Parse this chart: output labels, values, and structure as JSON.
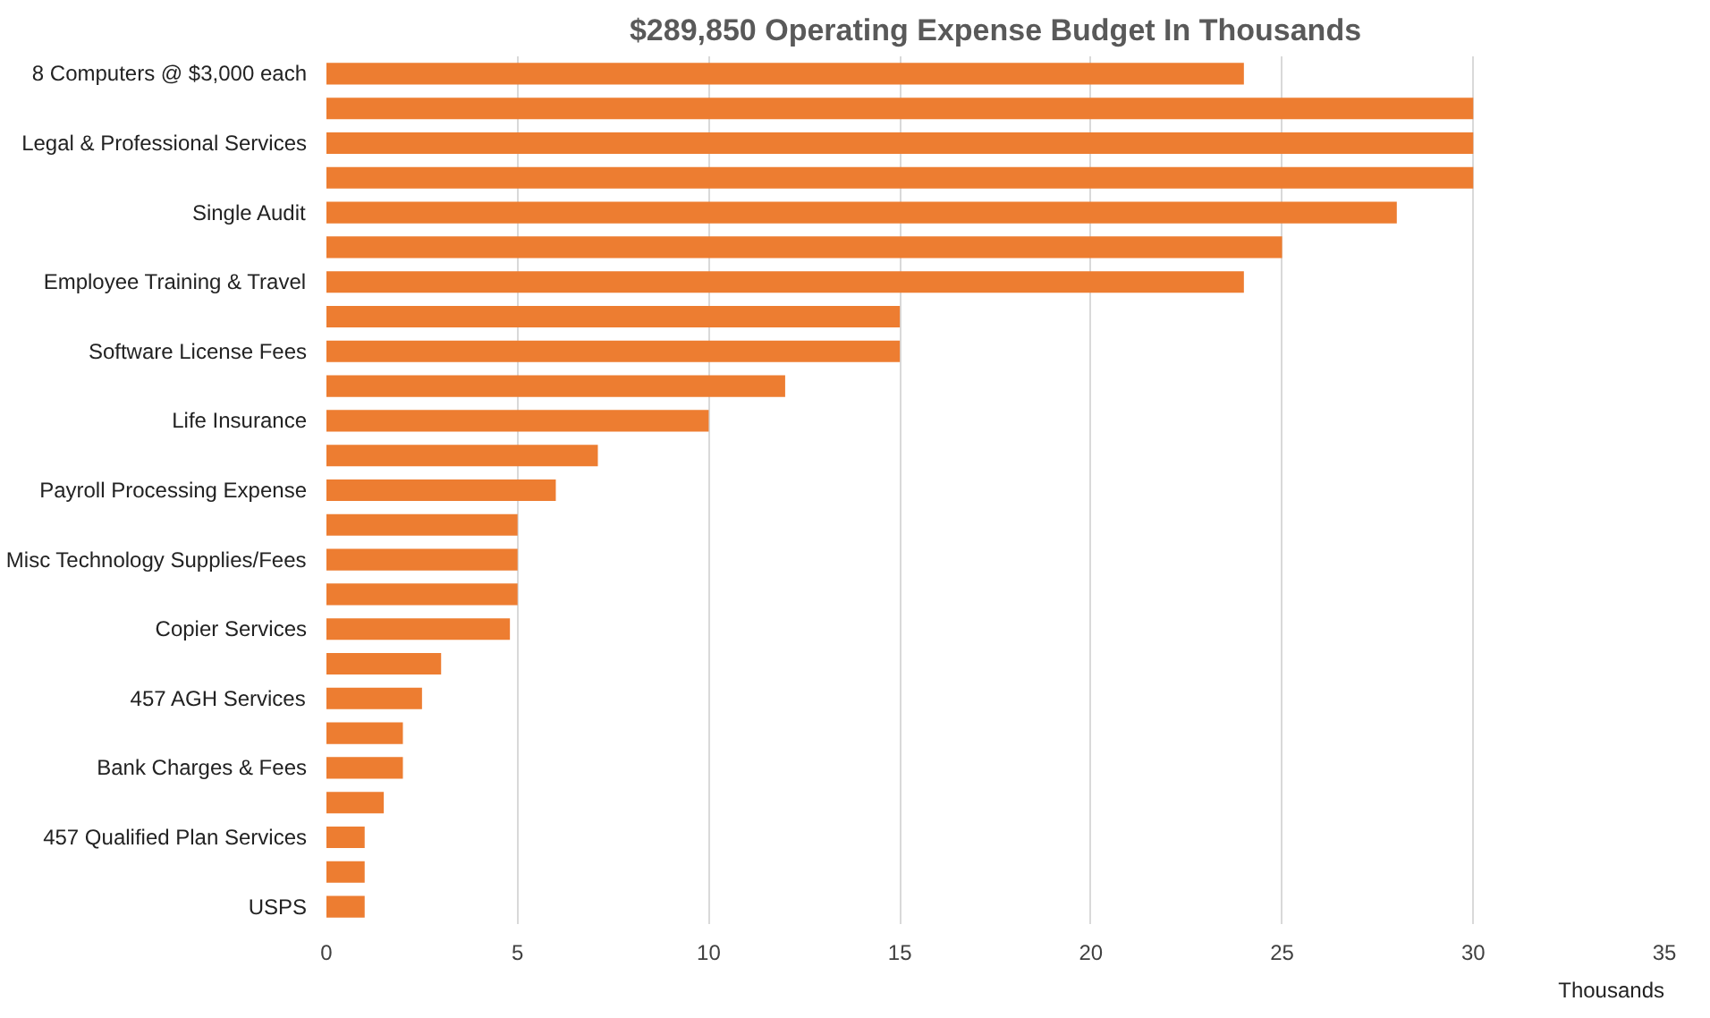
{
  "chart_data": {
    "type": "bar",
    "orientation": "horizontal",
    "title": "$289,850 Operating Expense Budget In Thousands",
    "xlabel": "Thousands",
    "categories": [
      "8 Computers @ $3,000 each",
      null,
      "Legal & Professional Services",
      null,
      "Single Audit",
      null,
      "Employee Training & Travel",
      null,
      "Software License Fees",
      null,
      "Life Insurance",
      null,
      "Payroll Processing Expense",
      null,
      "Misc Technology Supplies/Fees",
      null,
      "Copier Services",
      null,
      "457 AGH Services",
      null,
      "Bank Charges & Fees",
      null,
      "457 Qualified Plan Services",
      null,
      "USPS"
    ],
    "values": [
      24,
      30,
      30,
      30,
      28,
      25,
      24,
      15,
      15,
      12,
      10,
      7.1,
      6,
      5,
      5,
      5,
      4.8,
      3,
      2.5,
      2,
      2,
      1.5,
      1,
      1,
      1
    ],
    "color": "#ed7d31",
    "xlim": [
      0,
      35
    ],
    "xticks": [
      0,
      5,
      10,
      15,
      20,
      25,
      30,
      35
    ],
    "grid": "x"
  }
}
